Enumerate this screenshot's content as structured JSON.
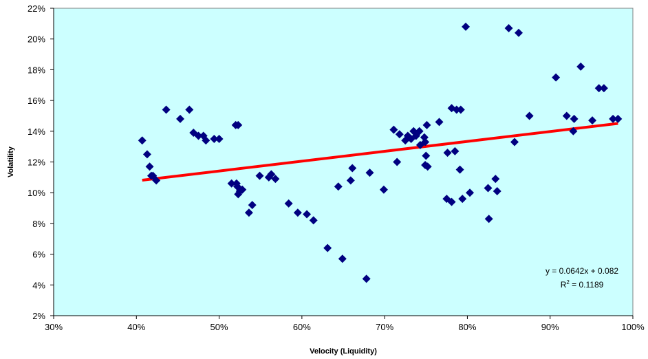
{
  "chart_data": {
    "type": "scatter",
    "xlabel": "Velocity (Liquidity)",
    "ylabel": "Volatility",
    "xlim": [
      0.3,
      1.0
    ],
    "ylim": [
      0.02,
      0.22
    ],
    "grid": false,
    "colors": {
      "plot_background": "#CCFFFF",
      "points": "#000080",
      "trendline": "#FF0000",
      "axis": "#000000"
    },
    "x_ticks": [
      {
        "value": 0.3,
        "label": "30%"
      },
      {
        "value": 0.4,
        "label": "40%"
      },
      {
        "value": 0.5,
        "label": "50%"
      },
      {
        "value": 0.6,
        "label": "60%"
      },
      {
        "value": 0.7,
        "label": "70%"
      },
      {
        "value": 0.8,
        "label": "80%"
      },
      {
        "value": 0.9,
        "label": "90%"
      },
      {
        "value": 1.0,
        "label": "100%"
      }
    ],
    "y_ticks": [
      {
        "value": 0.02,
        "label": "2%"
      },
      {
        "value": 0.04,
        "label": "4%"
      },
      {
        "value": 0.06,
        "label": "6%"
      },
      {
        "value": 0.08,
        "label": "8%"
      },
      {
        "value": 0.1,
        "label": "10%"
      },
      {
        "value": 0.12,
        "label": "12%"
      },
      {
        "value": 0.14,
        "label": "14%"
      },
      {
        "value": 0.16,
        "label": "16%"
      },
      {
        "value": 0.18,
        "label": "18%"
      },
      {
        "value": 0.2,
        "label": "20%"
      },
      {
        "value": 0.22,
        "label": "22%"
      }
    ],
    "points": [
      [
        0.407,
        0.134
      ],
      [
        0.413,
        0.125
      ],
      [
        0.416,
        0.117
      ],
      [
        0.418,
        0.111
      ],
      [
        0.42,
        0.111
      ],
      [
        0.424,
        0.108
      ],
      [
        0.436,
        0.154
      ],
      [
        0.453,
        0.148
      ],
      [
        0.464,
        0.154
      ],
      [
        0.469,
        0.139
      ],
      [
        0.475,
        0.137
      ],
      [
        0.481,
        0.137
      ],
      [
        0.484,
        0.134
      ],
      [
        0.494,
        0.135
      ],
      [
        0.5,
        0.135
      ],
      [
        0.515,
        0.106
      ],
      [
        0.52,
        0.144
      ],
      [
        0.521,
        0.106
      ],
      [
        0.522,
        0.104
      ],
      [
        0.523,
        0.144
      ],
      [
        0.523,
        0.099
      ],
      [
        0.525,
        0.101
      ],
      [
        0.528,
        0.102
      ],
      [
        0.536,
        0.087
      ],
      [
        0.54,
        0.092
      ],
      [
        0.549,
        0.111
      ],
      [
        0.56,
        0.11
      ],
      [
        0.563,
        0.112
      ],
      [
        0.568,
        0.109
      ],
      [
        0.584,
        0.093
      ],
      [
        0.595,
        0.087
      ],
      [
        0.606,
        0.086
      ],
      [
        0.614,
        0.082
      ],
      [
        0.631,
        0.064
      ],
      [
        0.644,
        0.104
      ],
      [
        0.649,
        0.057
      ],
      [
        0.659,
        0.108
      ],
      [
        0.661,
        0.116
      ],
      [
        0.678,
        0.044
      ],
      [
        0.682,
        0.113
      ],
      [
        0.699,
        0.102
      ],
      [
        0.711,
        0.141
      ],
      [
        0.715,
        0.12
      ],
      [
        0.718,
        0.138
      ],
      [
        0.725,
        0.134
      ],
      [
        0.728,
        0.137
      ],
      [
        0.732,
        0.135
      ],
      [
        0.735,
        0.14
      ],
      [
        0.738,
        0.137
      ],
      [
        0.742,
        0.14
      ],
      [
        0.743,
        0.131
      ],
      [
        0.748,
        0.136
      ],
      [
        0.749,
        0.133
      ],
      [
        0.749,
        0.118
      ],
      [
        0.75,
        0.124
      ],
      [
        0.751,
        0.144
      ],
      [
        0.752,
        0.117
      ],
      [
        0.766,
        0.146
      ],
      [
        0.775,
        0.096
      ],
      [
        0.776,
        0.126
      ],
      [
        0.781,
        0.094
      ],
      [
        0.781,
        0.155
      ],
      [
        0.785,
        0.127
      ],
      [
        0.787,
        0.154
      ],
      [
        0.791,
        0.115
      ],
      [
        0.792,
        0.154
      ],
      [
        0.794,
        0.096
      ],
      [
        0.798,
        0.208
      ],
      [
        0.803,
        0.1
      ],
      [
        0.825,
        0.103
      ],
      [
        0.826,
        0.083
      ],
      [
        0.834,
        0.109
      ],
      [
        0.836,
        0.101
      ],
      [
        0.85,
        0.207
      ],
      [
        0.857,
        0.133
      ],
      [
        0.862,
        0.204
      ],
      [
        0.875,
        0.15
      ],
      [
        0.907,
        0.175
      ],
      [
        0.92,
        0.15
      ],
      [
        0.928,
        0.14
      ],
      [
        0.929,
        0.148
      ],
      [
        0.937,
        0.182
      ],
      [
        0.951,
        0.147
      ],
      [
        0.959,
        0.168
      ],
      [
        0.965,
        0.168
      ],
      [
        0.976,
        0.148
      ],
      [
        0.982,
        0.148
      ]
    ],
    "trendline": {
      "type": "linear",
      "slope": 0.0642,
      "intercept": 0.082,
      "x_start": 0.407,
      "x_end": 0.982,
      "equation_text": "y = 0.0642x + 0.082",
      "r2_prefix": "R",
      "r2_sup": "2",
      "r2_suffix": " = 0.1189"
    }
  }
}
